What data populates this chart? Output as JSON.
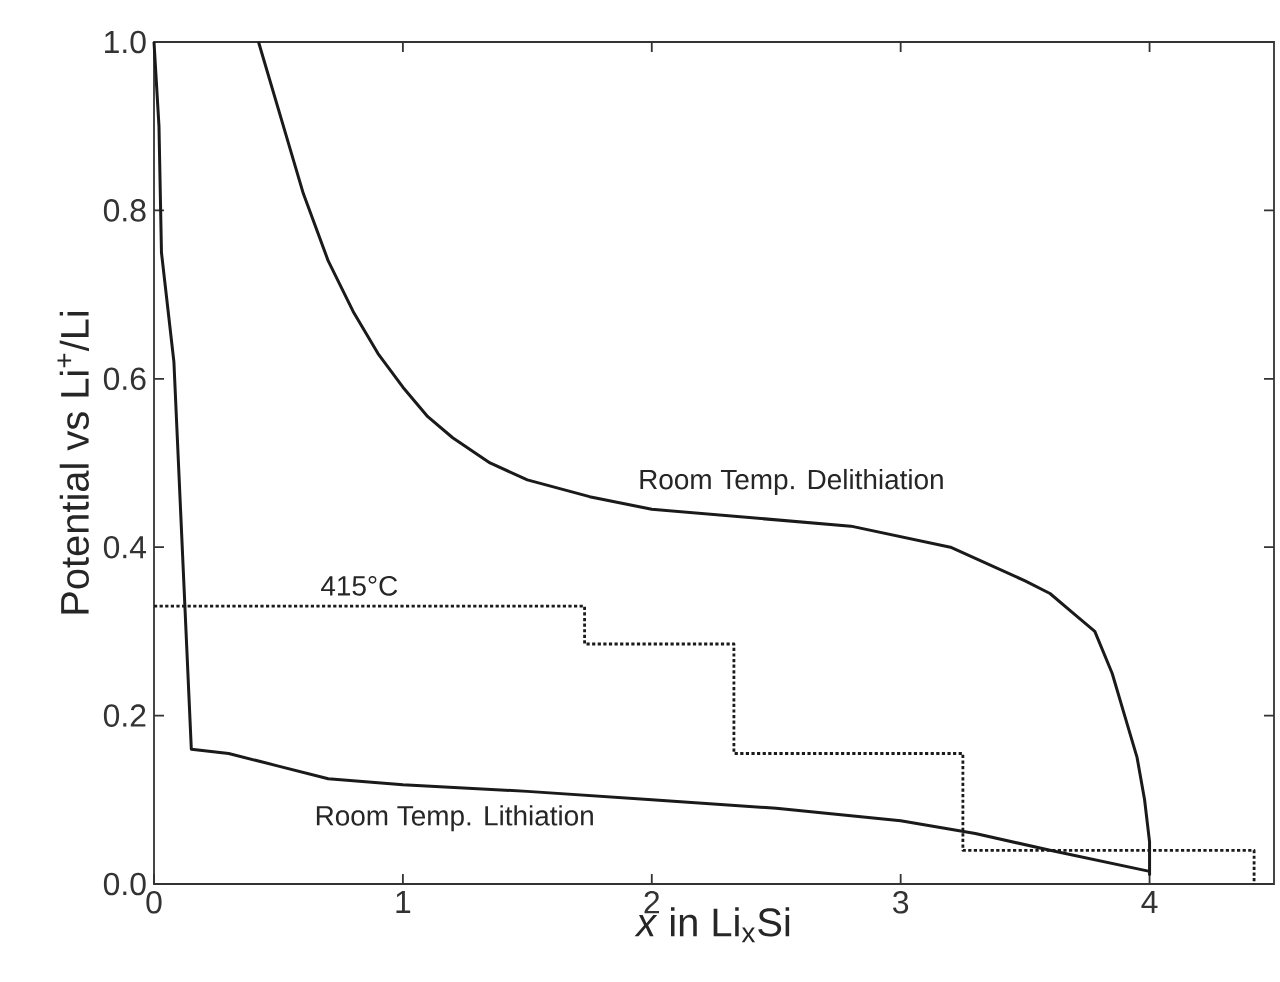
{
  "chart_data": {
    "type": "line",
    "xlabel": "*x* in Li$_{x}$Si",
    "ylabel": "Potential vs Li$^{+}$/Li",
    "xlim": [
      0,
      4.5
    ],
    "ylim": [
      0,
      1.0
    ],
    "xticks": [
      0,
      1,
      2,
      3,
      4
    ],
    "yticks": [
      {
        "value": 0,
        "label": "0.0"
      },
      {
        "value": 0.2,
        "label": "0.2"
      },
      {
        "value": 0.4,
        "label": "0.4"
      },
      {
        "value": 0.6,
        "label": "0.6"
      },
      {
        "value": 0.8,
        "label": "0.8"
      },
      {
        "value": 1.0,
        "label": "1.0"
      }
    ],
    "series": [
      {
        "name": "Room Temp. Lithiation",
        "type": "line",
        "color": "#1a1a1a",
        "line_style": "solid",
        "x": [
          0,
          0.02,
          0.03,
          0.08,
          0.15,
          0.3,
          0.5,
          0.7,
          1.0,
          1.5,
          2.0,
          2.5,
          3.0,
          3.3,
          3.6,
          4.0
        ],
        "values": [
          1.0,
          0.9,
          0.75,
          0.62,
          0.16,
          0.155,
          0.14,
          0.125,
          0.118,
          0.11,
          0.1,
          0.09,
          0.075,
          0.06,
          0.04,
          0.015
        ]
      },
      {
        "name": "Room Temp. Delithiation",
        "type": "line",
        "color": "#1a1a1a",
        "line_style": "solid",
        "x": [
          4.0,
          4.0,
          3.98,
          3.95,
          3.9,
          3.85,
          3.78,
          3.7,
          3.6,
          3.5,
          3.2,
          2.8,
          2.4,
          2.0,
          1.75,
          1.5,
          1.35,
          1.2,
          1.1,
          1.0,
          0.9,
          0.8,
          0.7,
          0.6,
          0.5,
          0.42
        ],
        "values": [
          0.01,
          0.05,
          0.1,
          0.15,
          0.2,
          0.25,
          0.3,
          0.32,
          0.345,
          0.36,
          0.4,
          0.425,
          0.435,
          0.445,
          0.46,
          0.48,
          0.5,
          0.53,
          0.555,
          0.59,
          0.63,
          0.68,
          0.74,
          0.82,
          0.92,
          1.0
        ]
      },
      {
        "name": "415°C",
        "type": "step",
        "color": "#1a1a1a",
        "line_style": "dotted",
        "x": [
          0,
          1.73,
          2.33,
          3.25,
          4.42
        ],
        "values": [
          0.33,
          0.285,
          0.155,
          0.04,
          0
        ]
      }
    ]
  }
}
